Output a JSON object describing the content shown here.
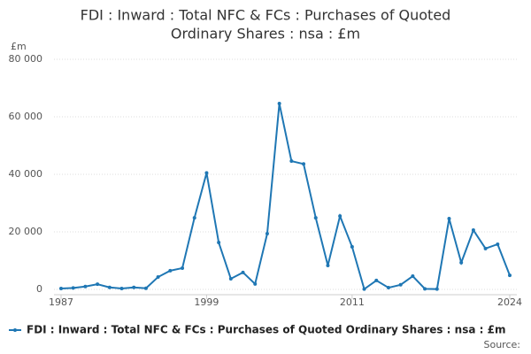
{
  "chart_data": {
    "type": "line",
    "title_lines": [
      "FDI : Inward : Total NFC & FCs : Purchases of Quoted",
      "Ordinary Shares : nsa : £m"
    ],
    "y_label": "£m",
    "source": "Source:",
    "x": [
      1987,
      1988,
      1989,
      1990,
      1991,
      1992,
      1993,
      1994,
      1995,
      1996,
      1997,
      1998,
      1999,
      2000,
      2001,
      2002,
      2003,
      2004,
      2005,
      2006,
      2007,
      2008,
      2009,
      2010,
      2011,
      2012,
      2013,
      2014,
      2015,
      2016,
      2017,
      2018,
      2019,
      2020,
      2021,
      2022,
      2023,
      2024
    ],
    "series": [
      {
        "name": "FDI : Inward : Total NFC & FCs : Purchases of Quoted Ordinary Shares : nsa : £m",
        "color": "#1f77b4",
        "values": [
          300,
          500,
          1000,
          1800,
          700,
          300,
          700,
          400,
          4300,
          6500,
          7400,
          24900,
          40500,
          16300,
          3700,
          5900,
          1900,
          19400,
          64600,
          44600,
          43600,
          24900,
          8300,
          25500,
          14800,
          100,
          3100,
          600,
          1600,
          4600,
          200,
          100,
          24600,
          9300,
          20600,
          14200,
          15700,
          4900
        ]
      }
    ],
    "xlim": [
      1987,
      2024
    ],
    "xticks": [
      1987,
      1999,
      2011,
      2024
    ],
    "ylim": [
      0,
      80000
    ],
    "yticks": [
      0,
      {
        "value": 20000,
        "label": "20 000"
      },
      {
        "value": 40000,
        "label": "40 000"
      },
      {
        "value": 60000,
        "label": "60 000"
      },
      {
        "value": 80000,
        "label": "80 000"
      }
    ],
    "grid": true
  }
}
